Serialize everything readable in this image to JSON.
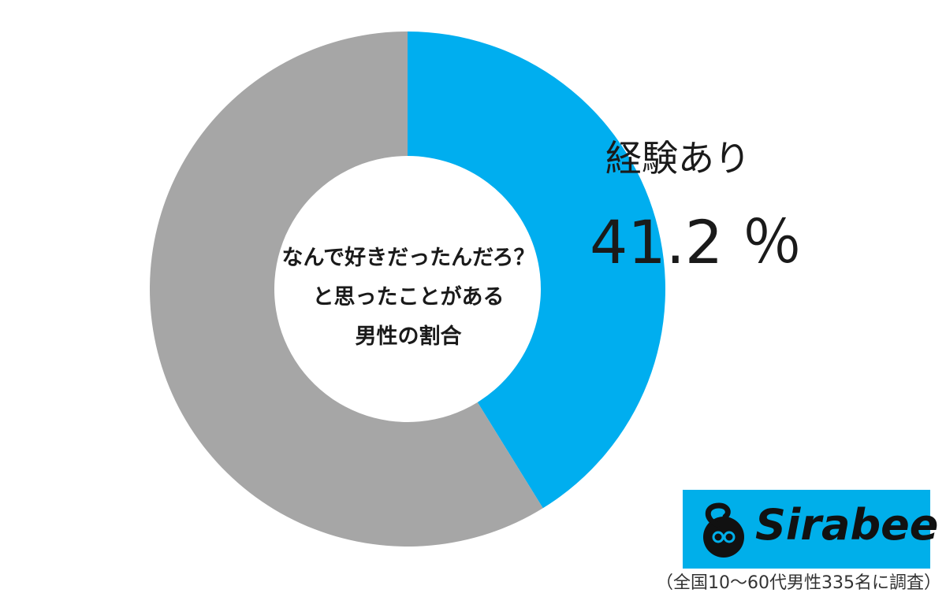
{
  "chart_data": {
    "type": "pie",
    "style": "donut",
    "title_lines": [
      "なんで好きだったんだろ？",
      "と思ったことがある",
      "男性の割合"
    ],
    "slices": [
      {
        "label": "経験あり",
        "value": 41.2,
        "value_text": "41.2 ％",
        "color": "#00aeef"
      },
      {
        "value": 58.8,
        "color": "#a6a6a6"
      }
    ],
    "start_angle": "12 o'clock",
    "direction": "clockwise"
  },
  "logo": {
    "text": "Sirabee",
    "background": "#00afea"
  },
  "footnote": "（全国10～60代男性335名に調査）"
}
